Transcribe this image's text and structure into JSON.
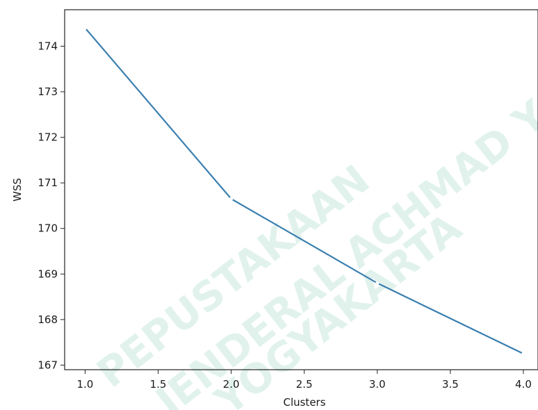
{
  "chart_data": {
    "type": "line",
    "title": "",
    "xlabel": "Clusters",
    "ylabel": "WSS",
    "xlim": [
      0.86,
      4.1
    ],
    "ylim": [
      166.9,
      174.8
    ],
    "x_ticks": [
      "1.0",
      "1.5",
      "2.0",
      "2.5",
      "3.0",
      "3.5",
      "4.0"
    ],
    "y_ticks": [
      "167",
      "168",
      "169",
      "170",
      "171",
      "172",
      "173",
      "174"
    ],
    "grid": false,
    "series": [
      {
        "color": "#3a7fb0",
        "x": [
          1.0,
          2.0,
          3.0,
          4.0
        ],
        "y": [
          174.4,
          170.65,
          168.8,
          167.25
        ]
      }
    ]
  },
  "watermark": {
    "lines": [
      "PEPUSTAKAAN",
      "JENDERAL ACHMAD YANI",
      "YOGYAKARTA"
    ],
    "color": "#1fa37a"
  }
}
